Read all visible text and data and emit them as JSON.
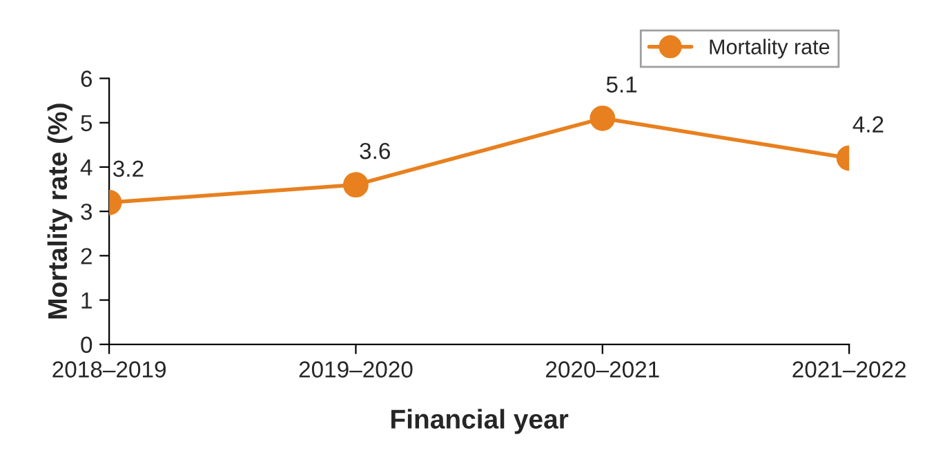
{
  "chart_data": {
    "type": "line",
    "xlabel": "Financial year",
    "ylabel": "Mortality rate (%)",
    "categories": [
      "2018–2019",
      "2019–2020",
      "2020–2021",
      "2021–2022"
    ],
    "series": [
      {
        "name": "Mortality rate",
        "color": "#e8801f",
        "values": [
          3.2,
          3.6,
          5.1,
          4.2
        ]
      }
    ],
    "ylim": [
      0,
      6
    ],
    "yticks": [
      0,
      1,
      2,
      3,
      4,
      5,
      6
    ],
    "grid": false,
    "legend": "top right",
    "marker": "circle",
    "line_style": "solid",
    "data_labels": true
  }
}
